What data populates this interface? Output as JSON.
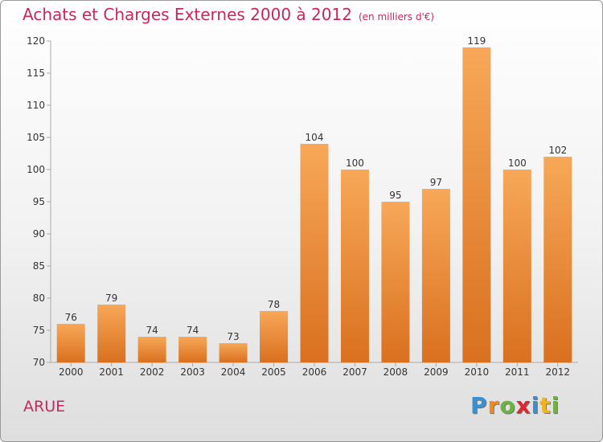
{
  "chart_data": {
    "type": "bar",
    "title": "Achats et Charges Externes 2000 à 2012",
    "subtitle": "(en milliers d'€)",
    "categories": [
      "2000",
      "2001",
      "2002",
      "2003",
      "2004",
      "2005",
      "2006",
      "2007",
      "2008",
      "2009",
      "2010",
      "2011",
      "2012"
    ],
    "values": [
      76,
      79,
      74,
      74,
      73,
      78,
      104,
      100,
      95,
      97,
      119,
      100,
      102
    ],
    "ylim": [
      70,
      120
    ],
    "yticks": [
      70,
      75,
      80,
      85,
      90,
      95,
      100,
      105,
      110,
      115,
      120
    ],
    "grid": false,
    "bar_color": "#f29c4a"
  },
  "city": "ARUE",
  "brand": {
    "letters": [
      "P",
      "r",
      "o",
      "x",
      "i",
      "t",
      "i"
    ],
    "colors": [
      "#3a8fd1",
      "#f08a1c",
      "#6cb33f",
      "#e0262f",
      "#3a8fd1",
      "#f0b41c",
      "#6cb33f"
    ]
  }
}
